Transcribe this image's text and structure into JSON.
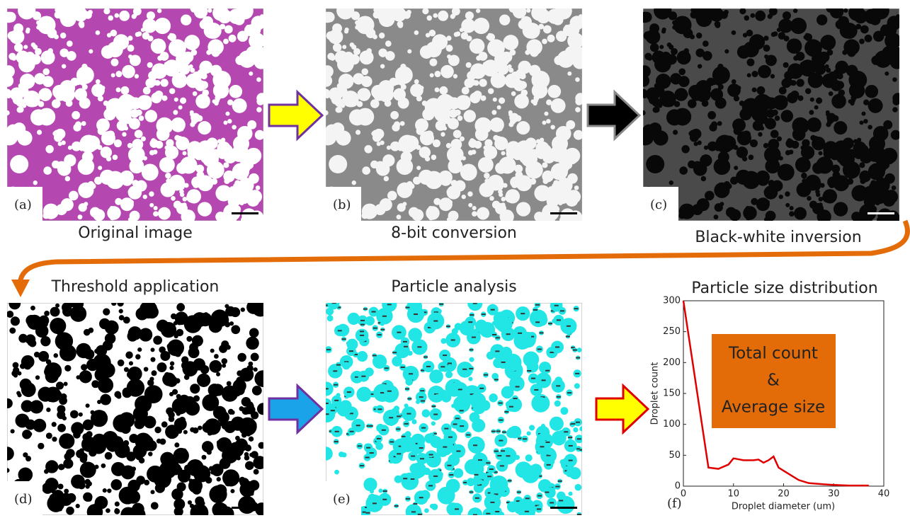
{
  "panels": [
    {
      "label": "(a)",
      "caption": "Original image"
    },
    {
      "label": "(b)",
      "caption": "8-bit conversion"
    },
    {
      "label": "(c)",
      "caption": "Black-white inversion"
    },
    {
      "label": "(d)",
      "caption": "Threshold application"
    },
    {
      "label": "(e)",
      "caption": "Particle analysis"
    }
  ],
  "chart_data": {
    "type": "line",
    "title": "Particle size distribution",
    "panel_label": "(f)",
    "xlabel": "Droplet diameter (um)",
    "ylabel": "Droplet count",
    "x": [
      0,
      5,
      7,
      9,
      10,
      12,
      14,
      15,
      16,
      17,
      18,
      19,
      20,
      22,
      23,
      25,
      28,
      30,
      33,
      37
    ],
    "values": [
      300,
      30,
      28,
      35,
      45,
      42,
      42,
      43,
      38,
      42,
      48,
      30,
      25,
      15,
      10,
      5,
      3,
      2,
      1,
      1
    ],
    "color": "#e00000",
    "xlim": [
      0,
      40
    ],
    "ylim": [
      0,
      300
    ],
    "xticks": [
      0,
      10,
      20,
      30,
      40
    ],
    "yticks": [
      0,
      50,
      100,
      150,
      200,
      250,
      300
    ],
    "annotation": [
      "Total count",
      "&",
      "Average size"
    ]
  }
}
